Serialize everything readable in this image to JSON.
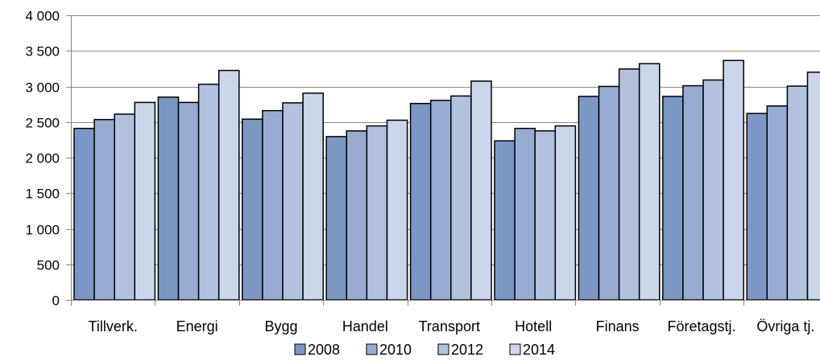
{
  "chart_data": {
    "type": "bar",
    "categories": [
      "Tillverk.",
      "Energi",
      "Bygg",
      "Handel",
      "Transport",
      "Hotell",
      "Finans",
      "Företagstj.",
      "Övriga tj."
    ],
    "series": [
      {
        "name": "2008",
        "color": "#7d97c5",
        "values": [
          2410,
          2850,
          2540,
          2295,
          2760,
          2235,
          2860,
          2860,
          2620
        ]
      },
      {
        "name": "2010",
        "color": "#98acd1",
        "values": [
          2535,
          2775,
          2660,
          2375,
          2805,
          2410,
          3000,
          3010,
          2725
        ]
      },
      {
        "name": "2012",
        "color": "#b1c1de",
        "values": [
          2610,
          3030,
          2770,
          2445,
          2865,
          2375,
          3245,
          3090,
          3005
        ]
      },
      {
        "name": "2014",
        "color": "#ccd6ea",
        "values": [
          2775,
          3225,
          2905,
          2525,
          3075,
          2445,
          3320,
          3365,
          3200
        ]
      }
    ],
    "ylim": [
      0,
      4000
    ],
    "yticks": [
      "4 000",
      "3 500",
      "3 000",
      "2 500",
      "2 000",
      "1 500",
      "1 000",
      "500",
      "0"
    ],
    "ytick_values": [
      4000,
      3500,
      3000,
      2500,
      2000,
      1500,
      1000,
      500,
      0
    ],
    "grid": true,
    "legend_position": "bottom"
  }
}
